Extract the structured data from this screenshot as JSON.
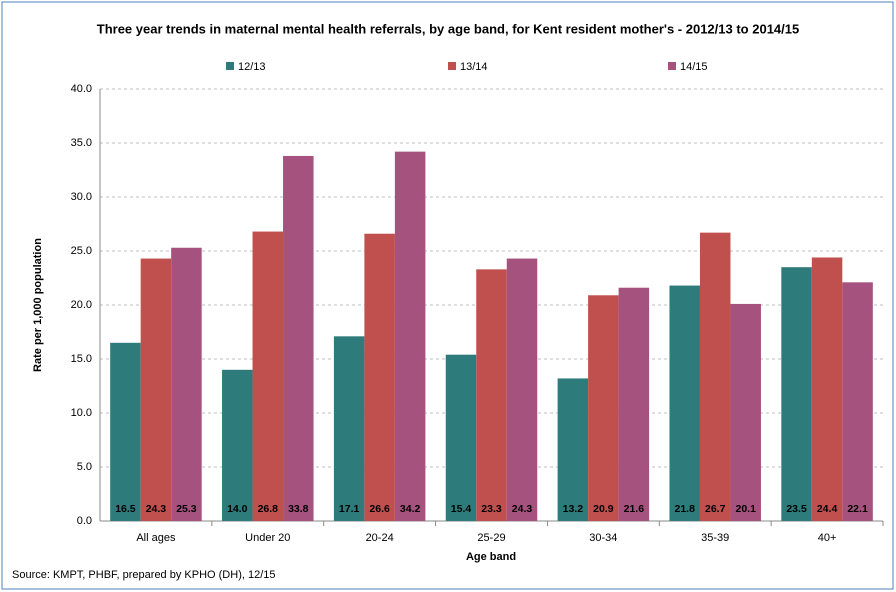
{
  "chart_data": {
    "type": "bar",
    "title": "Three year trends in maternal mental health referrals, by age band, for Kent resident mother's - 2012/13 to 2014/15",
    "x_label": "Age band",
    "y_label": "Rate per 1,000 population",
    "source": "Source: KMPT, PHBF, prepared by KPHO (DH), 12/15",
    "categories": [
      "All ages",
      "Under 20",
      "20-24",
      "25-29",
      "30-34",
      "35-39",
      "40+"
    ],
    "series": [
      {
        "name": "12/13",
        "color": "#2e7b7b",
        "values": [
          16.5,
          14.0,
          17.1,
          15.4,
          13.2,
          21.8,
          23.5
        ],
        "value_labels": [
          "16.5",
          "14.0",
          "17.1",
          "15.4",
          "13.2",
          "21.8",
          "23.5"
        ]
      },
      {
        "name": "13/14",
        "color": "#c0504d",
        "values": [
          24.3,
          26.8,
          26.6,
          23.3,
          20.9,
          26.7,
          24.4
        ],
        "value_labels": [
          "24.3",
          "26.8",
          "26.6",
          "23.3",
          "20.9",
          "26.7",
          "24.4"
        ]
      },
      {
        "name": "14/15",
        "color": "#a5527f",
        "values": [
          25.3,
          33.8,
          34.2,
          24.3,
          21.6,
          20.1,
          22.1
        ],
        "value_labels": [
          "25.3",
          "33.8",
          "34.2",
          "24.3",
          "21.6",
          "20.1",
          "22.1"
        ]
      }
    ],
    "ylim": [
      0,
      40
    ],
    "yticks": [
      {
        "value": 0,
        "label": "0.0"
      },
      {
        "value": 5,
        "label": "5.0"
      },
      {
        "value": 10,
        "label": "10.0"
      },
      {
        "value": 15,
        "label": "15.0"
      },
      {
        "value": 20,
        "label": "20.0"
      },
      {
        "value": 25,
        "label": "25.0"
      },
      {
        "value": 30,
        "label": "30.0"
      },
      {
        "value": 35,
        "label": "35.0"
      },
      {
        "value": 40,
        "label": "40.0"
      }
    ],
    "grid": true,
    "legend": "top"
  }
}
